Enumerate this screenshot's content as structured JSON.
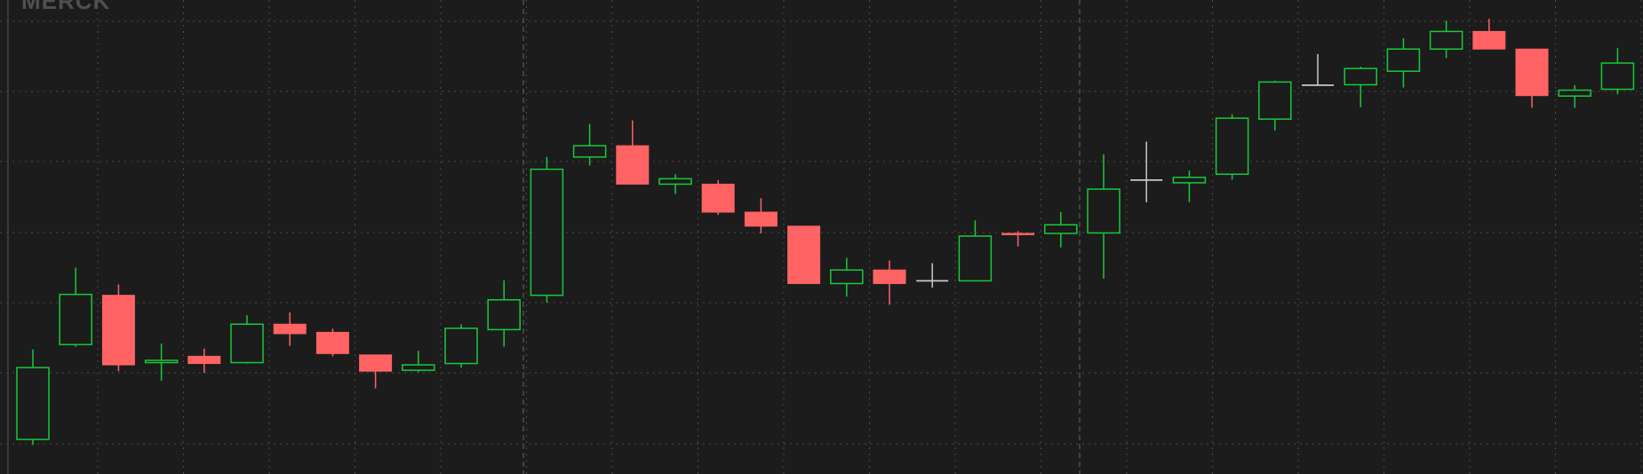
{
  "logo": {
    "text": "MERCK"
  },
  "colors": {
    "up": "#18c93a",
    "down": "#ff6363",
    "neutral": "#c8c8c8",
    "grid": "#4a4a4a",
    "background": "#1c1c1c"
  },
  "chart_data": {
    "type": "candlestick",
    "grid": true,
    "ylim": [
      0,
      100
    ],
    "candles": [
      {
        "o": 5.1,
        "h": 25.0,
        "l": 3.9,
        "c": 21.0
      },
      {
        "o": 26.1,
        "h": 43.1,
        "l": 25.6,
        "c": 37.2
      },
      {
        "o": 37.0,
        "h": 39.4,
        "l": 20.2,
        "c": 21.6
      },
      {
        "o": 22.1,
        "h": 26.3,
        "l": 18.1,
        "c": 22.6
      },
      {
        "o": 23.5,
        "h": 25.2,
        "l": 19.8,
        "c": 21.9
      },
      {
        "o": 22.1,
        "h": 32.6,
        "l": 21.9,
        "c": 30.6
      },
      {
        "o": 30.6,
        "h": 33.2,
        "l": 25.8,
        "c": 28.5
      },
      {
        "o": 28.8,
        "h": 29.6,
        "l": 23.5,
        "c": 24.1
      },
      {
        "o": 23.8,
        "h": 23.8,
        "l": 16.4,
        "c": 20.2
      },
      {
        "o": 20.4,
        "h": 24.7,
        "l": 20.0,
        "c": 21.6
      },
      {
        "o": 21.9,
        "h": 30.6,
        "l": 21.0,
        "c": 29.7
      },
      {
        "o": 29.4,
        "h": 40.3,
        "l": 25.6,
        "c": 36.0
      },
      {
        "o": 37.0,
        "h": 67.6,
        "l": 35.4,
        "c": 64.9
      },
      {
        "o": 67.6,
        "h": 74.9,
        "l": 65.7,
        "c": 70.1
      },
      {
        "o": 70.1,
        "h": 75.7,
        "l": 61.6,
        "c": 61.6
      },
      {
        "o": 61.6,
        "h": 63.8,
        "l": 59.4,
        "c": 62.8
      },
      {
        "o": 61.6,
        "h": 62.5,
        "l": 54.8,
        "c": 55.4
      },
      {
        "o": 55.4,
        "h": 58.5,
        "l": 50.7,
        "c": 52.3
      },
      {
        "o": 52.3,
        "h": 52.3,
        "l": 39.6,
        "c": 39.6
      },
      {
        "o": 39.6,
        "h": 45.3,
        "l": 36.7,
        "c": 42.6
      },
      {
        "o": 42.6,
        "h": 44.7,
        "l": 34.9,
        "c": 39.6
      },
      {
        "o": 40.2,
        "h": 44.1,
        "l": 38.7,
        "c": 40.2
      },
      {
        "o": 40.2,
        "h": 53.6,
        "l": 40.2,
        "c": 50.1
      },
      {
        "o": 50.7,
        "h": 51.2,
        "l": 47.8,
        "c": 50.5
      },
      {
        "o": 50.7,
        "h": 55.4,
        "l": 47.6,
        "c": 52.6
      },
      {
        "o": 50.8,
        "h": 68.2,
        "l": 40.7,
        "c": 60.5
      },
      {
        "o": 62.5,
        "h": 71.0,
        "l": 57.6,
        "c": 62.5
      },
      {
        "o": 61.9,
        "h": 64.6,
        "l": 57.6,
        "c": 63.1
      },
      {
        "o": 63.8,
        "h": 77.1,
        "l": 62.6,
        "c": 76.2
      },
      {
        "o": 76.0,
        "h": 84.5,
        "l": 73.5,
        "c": 84.2
      },
      {
        "o": 83.5,
        "h": 90.4,
        "l": 83.5,
        "c": 83.5
      },
      {
        "o": 83.6,
        "h": 87.6,
        "l": 78.6,
        "c": 87.2
      },
      {
        "o": 86.6,
        "h": 93.9,
        "l": 83.0,
        "c": 91.5
      },
      {
        "o": 91.5,
        "h": 97.8,
        "l": 89.5,
        "c": 95.4
      },
      {
        "o": 95.4,
        "h": 98.2,
        "l": 91.5,
        "c": 91.5
      },
      {
        "o": 91.5,
        "h": 91.5,
        "l": 78.5,
        "c": 81.2
      },
      {
        "o": 81.1,
        "h": 83.5,
        "l": 78.5,
        "c": 82.4
      },
      {
        "o": 82.6,
        "h": 91.7,
        "l": 81.5,
        "c": 88.4
      }
    ]
  }
}
